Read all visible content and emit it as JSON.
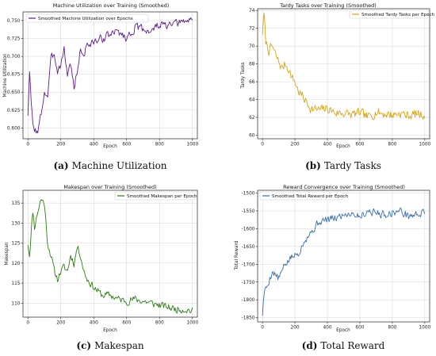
{
  "chart_data": [
    {
      "type": "line",
      "title": "Machine Utilization over Training (Smoothed)",
      "xlabel": "Epoch",
      "ylabel": "Machine Utilization",
      "xlim": [
        -30,
        1030
      ],
      "ylim": [
        0.585,
        0.762
      ],
      "xticks": [
        0,
        200,
        400,
        600,
        800,
        1000
      ],
      "yticks": [
        0.6,
        0.625,
        0.65,
        0.675,
        0.7,
        0.725,
        0.75
      ],
      "ytick_labels": [
        "0.600",
        "0.625",
        "0.650",
        "0.675",
        "0.700",
        "0.725",
        "0.750"
      ],
      "grid": true,
      "legend_position": "top-left",
      "caption_label": "(a)",
      "caption_text": "Machine Utilization",
      "series": [
        {
          "name": "Smoothed Machine Utilization over Epochs",
          "color": "#5b1f8e",
          "anchors": [
            [
              0,
              0.62
            ],
            [
              10,
              0.675
            ],
            [
              20,
              0.635
            ],
            [
              30,
              0.603
            ],
            [
              40,
              0.6
            ],
            [
              60,
              0.592
            ],
            [
              80,
              0.62
            ],
            [
              100,
              0.65
            ],
            [
              120,
              0.645
            ],
            [
              140,
              0.695
            ],
            [
              160,
              0.705
            ],
            [
              180,
              0.68
            ],
            [
              200,
              0.69
            ],
            [
              220,
              0.71
            ],
            [
              240,
              0.675
            ],
            [
              260,
              0.69
            ],
            [
              280,
              0.655
            ],
            [
              300,
              0.68
            ],
            [
              320,
              0.71
            ],
            [
              340,
              0.7
            ],
            [
              360,
              0.72
            ],
            [
              380,
              0.715
            ],
            [
              400,
              0.72
            ],
            [
              450,
              0.725
            ],
            [
              500,
              0.73
            ],
            [
              550,
              0.735
            ],
            [
              600,
              0.725
            ],
            [
              650,
              0.74
            ],
            [
              700,
              0.738
            ],
            [
              750,
              0.735
            ],
            [
              800,
              0.745
            ],
            [
              850,
              0.742
            ],
            [
              900,
              0.745
            ],
            [
              950,
              0.748
            ],
            [
              1000,
              0.752
            ]
          ],
          "noise": 0.008,
          "seed": 3
        }
      ]
    },
    {
      "type": "line",
      "title": "Tardy Tasks over Training (Smoothed)",
      "xlabel": "Epoch",
      "ylabel": "Tardy Tasks",
      "xlim": [
        -30,
        1030
      ],
      "ylim": [
        59.6,
        74.2
      ],
      "xticks": [
        0,
        200,
        400,
        600,
        800,
        1000
      ],
      "yticks": [
        60,
        62,
        64,
        66,
        68,
        70,
        72,
        74
      ],
      "ytick_labels": [
        "60",
        "62",
        "64",
        "66",
        "68",
        "70",
        "72",
        "74"
      ],
      "grid": true,
      "legend_position": "top-right",
      "caption_label": "(b)",
      "caption_text": "Tardy Tasks",
      "series": [
        {
          "name": "Smoothed Tardy Tasks per Epoch",
          "color": "#d4a51c",
          "anchors": [
            [
              0,
              71.5
            ],
            [
              10,
              73.5
            ],
            [
              20,
              70.5
            ],
            [
              40,
              69.5
            ],
            [
              60,
              70.0
            ],
            [
              80,
              69.0
            ],
            [
              100,
              68.2
            ],
            [
              120,
              67.5
            ],
            [
              140,
              68.0
            ],
            [
              160,
              67.5
            ],
            [
              180,
              66.5
            ],
            [
              200,
              66.0
            ],
            [
              220,
              65.0
            ],
            [
              240,
              64.5
            ],
            [
              260,
              64.0
            ],
            [
              280,
              63.5
            ],
            [
              300,
              63.0
            ],
            [
              350,
              62.8
            ],
            [
              400,
              63.0
            ],
            [
              450,
              62.5
            ],
            [
              500,
              62.5
            ],
            [
              550,
              62.3
            ],
            [
              600,
              62.5
            ],
            [
              650,
              62.0
            ],
            [
              700,
              62.6
            ],
            [
              750,
              62.4
            ],
            [
              800,
              62.3
            ],
            [
              850,
              62.5
            ],
            [
              900,
              62.2
            ],
            [
              950,
              62.4
            ],
            [
              1000,
              62.3
            ]
          ],
          "noise": 0.75,
          "seed": 7
        }
      ]
    },
    {
      "type": "line",
      "title": "Makespan over Training (Smoothed)",
      "xlabel": "Epoch",
      "ylabel": "Makespan",
      "xlim": [
        -30,
        1030
      ],
      "ylim": [
        106.5,
        138.2
      ],
      "xticks": [
        0,
        200,
        400,
        600,
        800,
        1000
      ],
      "yticks": [
        110,
        115,
        120,
        125,
        130,
        135
      ],
      "ytick_labels": [
        "110",
        "115",
        "120",
        "125",
        "130",
        "135"
      ],
      "grid": true,
      "legend_position": "top-right",
      "caption_label": "(c)",
      "caption_text": "Makespan",
      "series": [
        {
          "name": "Smoothed Makespan per Epoch",
          "color": "#2e7d12",
          "anchors": [
            [
              0,
              125
            ],
            [
              10,
              122
            ],
            [
              20,
              128
            ],
            [
              30,
              133
            ],
            [
              40,
              129
            ],
            [
              60,
              133
            ],
            [
              80,
              136
            ],
            [
              100,
              135
            ],
            [
              120,
              125
            ],
            [
              140,
              122
            ],
            [
              160,
              118
            ],
            [
              180,
              116
            ],
            [
              200,
              118
            ],
            [
              220,
              119
            ],
            [
              240,
              118
            ],
            [
              260,
              122
            ],
            [
              280,
              120
            ],
            [
              300,
              124
            ],
            [
              320,
              122
            ],
            [
              340,
              118
            ],
            [
              360,
              116
            ],
            [
              380,
              115
            ],
            [
              400,
              114
            ],
            [
              450,
              112
            ],
            [
              500,
              112
            ],
            [
              550,
              111
            ],
            [
              600,
              110.5
            ],
            [
              650,
              111
            ],
            [
              700,
              110.5
            ],
            [
              750,
              110
            ],
            [
              800,
              109.5
            ],
            [
              850,
              109
            ],
            [
              900,
              108.5
            ],
            [
              950,
              108.5
            ],
            [
              1000,
              108
            ]
          ],
          "noise": 1.3,
          "seed": 11
        }
      ]
    },
    {
      "type": "line",
      "title": "Reward Convergence over Training (Smoothed)",
      "xlabel": "Epoch",
      "ylabel": "Total Reward",
      "xlim": [
        -30,
        1030
      ],
      "ylim": [
        -1862,
        -1492
      ],
      "xticks": [
        0,
        200,
        400,
        600,
        800,
        1000
      ],
      "yticks": [
        -1850,
        -1800,
        -1750,
        -1700,
        -1650,
        -1600,
        -1550,
        -1500
      ],
      "ytick_labels": [
        "-1850",
        "-1800",
        "-1750",
        "-1700",
        "-1650",
        "-1600",
        "-1550",
        "-1500"
      ],
      "grid": true,
      "legend_position": "top-left",
      "caption_label": "(d)",
      "caption_text": "Total Reward",
      "series": [
        {
          "name": "Smoothed Total Reward per Epoch",
          "color": "#3b6ea8",
          "anchors": [
            [
              0,
              -1840
            ],
            [
              10,
              -1780
            ],
            [
              30,
              -1760
            ],
            [
              60,
              -1720
            ],
            [
              100,
              -1740
            ],
            [
              140,
              -1700
            ],
            [
              180,
              -1680
            ],
            [
              220,
              -1670
            ],
            [
              260,
              -1630
            ],
            [
              300,
              -1610
            ],
            [
              350,
              -1580
            ],
            [
              400,
              -1575
            ],
            [
              450,
              -1570
            ],
            [
              500,
              -1560
            ],
            [
              550,
              -1555
            ],
            [
              600,
              -1565
            ],
            [
              650,
              -1550
            ],
            [
              700,
              -1555
            ],
            [
              750,
              -1560
            ],
            [
              800,
              -1555
            ],
            [
              850,
              -1550
            ],
            [
              900,
              -1565
            ],
            [
              950,
              -1560
            ],
            [
              1000,
              -1555
            ]
          ],
          "noise": 15,
          "seed": 5
        }
      ]
    }
  ]
}
